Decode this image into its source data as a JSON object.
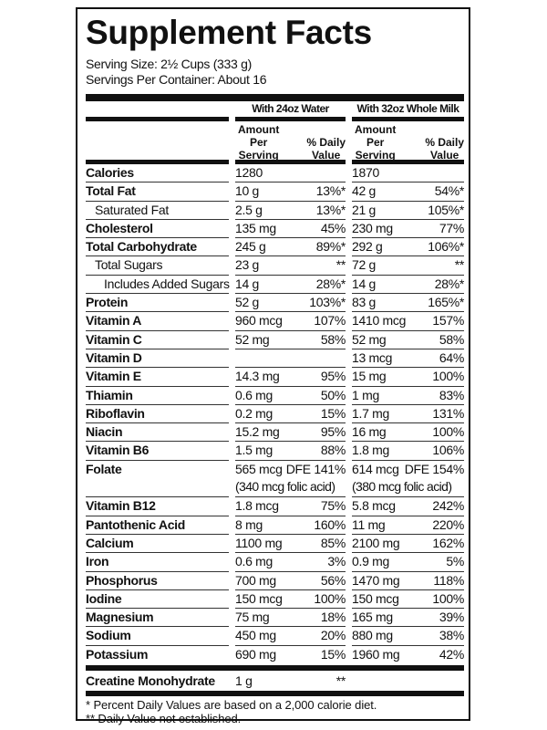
{
  "title": "Supplement Facts",
  "serving_size": "Serving Size: 2½ Cups (333 g)",
  "servings_per_container": "Servings Per Container: About 16",
  "columns": [
    {
      "heading": "With 24oz Water",
      "amount_label": [
        "Amount",
        "Per",
        "Serving"
      ],
      "dv_label": [
        "% Daily",
        "Value"
      ]
    },
    {
      "heading": "With 32oz Whole Milk",
      "amount_label": [
        "Amount",
        "Per",
        "Serving"
      ],
      "dv_label": [
        "% Daily",
        "Value"
      ]
    }
  ],
  "rows": [
    {
      "name": "Calories",
      "a1": "1280",
      "d1": "",
      "a2": "1870",
      "d2": ""
    },
    {
      "name": "Total Fat",
      "a1": "10 g",
      "d1": "13%*",
      "a2": "42 g",
      "d2": "54%*"
    },
    {
      "name": "Saturated Fat",
      "a1": "2.5 g",
      "d1": "13%*",
      "a2": "21 g",
      "d2": "105%*"
    },
    {
      "name": "Cholesterol",
      "a1": "135 mg",
      "d1": "45%",
      "a2": "230 mg",
      "d2": "77%"
    },
    {
      "name": "Total Carbohydrate",
      "a1": "245 g",
      "d1": "89%*",
      "a2": "292 g",
      "d2": "106%*"
    },
    {
      "name": "Total Sugars",
      "a1": "23 g",
      "d1": "**",
      "a2": "72 g",
      "d2": "**"
    },
    {
      "name": "Includes Added Sugars",
      "a1": "14 g",
      "d1": "28%*",
      "a2": "14 g",
      "d2": "28%*"
    },
    {
      "name": "Protein",
      "a1": "52 g",
      "d1": "103%*",
      "a2": "83 g",
      "d2": "165%*"
    },
    {
      "name": "Vitamin A",
      "a1": "960 mcg",
      "d1": "107%",
      "a2": "1410 mcg",
      "d2": "157%"
    },
    {
      "name": "Vitamin C",
      "a1": "52 mg",
      "d1": "58%",
      "a2": "52 mg",
      "d2": "58%"
    },
    {
      "name": "Vitamin D",
      "a1": "",
      "d1": "",
      "a2": "13 mcg",
      "d2": "64%"
    },
    {
      "name": "Vitamin E",
      "a1": "14.3 mg",
      "d1": "95%",
      "a2": "15 mg",
      "d2": "100%"
    },
    {
      "name": "Thiamin",
      "a1": "0.6 mg",
      "d1": "50%",
      "a2": "1 mg",
      "d2": "83%"
    },
    {
      "name": "Riboflavin",
      "a1": "0.2 mg",
      "d1": "15%",
      "a2": "1.7 mg",
      "d2": "131%"
    },
    {
      "name": "Niacin",
      "a1": "15.2 mg",
      "d1": "95%",
      "a2": "16 mg",
      "d2": "100%"
    },
    {
      "name": "Vitamin B6",
      "a1": "1.5 mg",
      "d1": "88%",
      "a2": "1.8 mg",
      "d2": "106%"
    },
    {
      "name": "Folate",
      "a1": "565 mcg",
      "d1": "DFE 141%",
      "a2": "614 mcg",
      "d2": "DFE 154%",
      "x1": "(340 mcg folic acid)",
      "x2": "(380 mcg folic acid)"
    },
    {
      "name": "Vitamin B12",
      "a1": "1.8 mcg",
      "d1": "75%",
      "a2": "5.8 mcg",
      "d2": "242%"
    },
    {
      "name": "Pantothenic Acid",
      "a1": "8 mg",
      "d1": "160%",
      "a2": "11 mg",
      "d2": "220%"
    },
    {
      "name": "Calcium",
      "a1": "1100 mg",
      "d1": "85%",
      "a2": "2100 mg",
      "d2": "162%"
    },
    {
      "name": "Iron",
      "a1": "0.6 mg",
      "d1": "3%",
      "a2": "0.9 mg",
      "d2": "5%"
    },
    {
      "name": "Phosphorus",
      "a1": "700 mg",
      "d1": "56%",
      "a2": "1470 mg",
      "d2": "118%"
    },
    {
      "name": "Iodine",
      "a1": "150 mcg",
      "d1": "100%",
      "a2": "150 mcg",
      "d2": "100%"
    },
    {
      "name": "Magnesium",
      "a1": "75 mg",
      "d1": "18%",
      "a2": "165 mg",
      "d2": "39%"
    },
    {
      "name": "Sodium",
      "a1": "450 mg",
      "d1": "20%",
      "a2": "880 mg",
      "d2": "38%"
    },
    {
      "name": "Potassium",
      "a1": "690 mg",
      "d1": "15%",
      "a2": "1960 mg",
      "d2": "42%"
    }
  ],
  "creatine": {
    "name": "Creatine Monohydrate",
    "a1": "1 g",
    "d1": "**"
  },
  "footnotes": [
    "* Percent Daily Values are based on a 2,000 calorie diet.",
    "** Daily Value not established."
  ]
}
